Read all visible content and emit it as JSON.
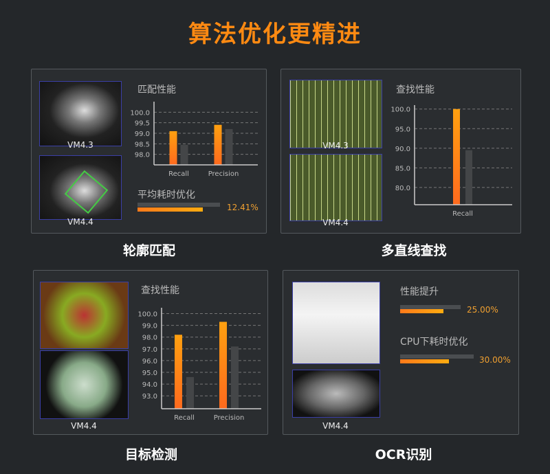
{
  "title": "算法优化更精进",
  "colors": {
    "accent": "#ff8a12",
    "new_bar": "#ff8c14",
    "old_bar": "#444648"
  },
  "panels": [
    {
      "caption": "轮廓匹配",
      "images": [
        "VM4.3",
        "VM4.4"
      ],
      "chart_title": "匹配性能",
      "metric": {
        "label": "平均耗时优化",
        "value": "12.41%",
        "fraction": 0.79
      }
    },
    {
      "caption": "多直线查找",
      "images": [
        "VM4.3",
        "VM4.4"
      ],
      "chart_title": "查找性能"
    },
    {
      "caption": "目标检测",
      "images": [
        "VM4.4"
      ],
      "chart_title": "查找性能"
    },
    {
      "caption": "OCR识别",
      "images": [
        "VM4.4"
      ],
      "metrics": [
        {
          "label": "性能提升",
          "value": "25.00%",
          "fraction": 0.72
        },
        {
          "label": "CPU下耗时优化",
          "value": "30.00%",
          "fraction": 0.66
        }
      ]
    }
  ],
  "chart_data": [
    {
      "type": "bar",
      "title": "匹配性能",
      "categories": [
        "Recall",
        "Precision"
      ],
      "yticks": [
        "98.0",
        "98.5",
        "99.0",
        "99.5",
        "100.0"
      ],
      "ylim": [
        97.5,
        100.5
      ],
      "grid": true,
      "series": [
        {
          "values": [
            99.1,
            99.4
          ]
        },
        {
          "values": [
            98.45,
            99.2
          ]
        }
      ]
    },
    {
      "type": "bar",
      "title": "查找性能",
      "categories": [
        "Recall"
      ],
      "yticks": [
        "80.0",
        "85.0",
        "90.0",
        "95.0",
        "100.0"
      ],
      "ylim": [
        75.6,
        101
      ],
      "grid": true,
      "series": [
        {
          "values": [
            100.0
          ]
        },
        {
          "values": [
            89.5
          ]
        }
      ]
    },
    {
      "type": "bar",
      "title": "查找性能",
      "categories": [
        "Recall",
        "Precision"
      ],
      "yticks": [
        "93.0",
        "94.0",
        "95.0",
        "96.0",
        "97.0",
        "98.0",
        "99.0",
        "100.0"
      ],
      "ylim": [
        91.9,
        100.5
      ],
      "grid": true,
      "series": [
        {
          "values": [
            98.2,
            99.3
          ]
        },
        {
          "values": [
            94.6,
            97.2
          ]
        }
      ]
    }
  ]
}
